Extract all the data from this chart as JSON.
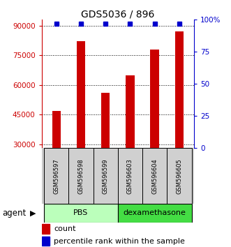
{
  "title": "GDS5036 / 896",
  "samples": [
    "GSM596597",
    "GSM596598",
    "GSM596599",
    "GSM596603",
    "GSM596604",
    "GSM596605"
  ],
  "counts": [
    47000,
    82000,
    56000,
    65000,
    78000,
    87000
  ],
  "percentiles": [
    97,
    97,
    97,
    97,
    97,
    97
  ],
  "bar_color": "#cc0000",
  "dot_color": "#0000cc",
  "groups": [
    {
      "label": "PBS",
      "color": "#bbffbb",
      "start": 0,
      "end": 3
    },
    {
      "label": "dexamethasone",
      "color": "#44dd44",
      "start": 3,
      "end": 6
    }
  ],
  "group_label": "agent",
  "ylim_left": [
    28000,
    93000
  ],
  "ylim_right": [
    0,
    100
  ],
  "yticks_left": [
    30000,
    45000,
    60000,
    75000,
    90000
  ],
  "yticks_right": [
    0,
    25,
    50,
    75,
    100
  ],
  "ytick_labels_left": [
    "30000",
    "45000",
    "60000",
    "75000",
    "90000"
  ],
  "ytick_labels_right": [
    "0",
    "25",
    "50",
    "75",
    "100%"
  ],
  "left_axis_color": "#cc0000",
  "right_axis_color": "#0000cc",
  "background_color": "#ffffff",
  "legend_count_label": "count",
  "legend_percentile_label": "percentile rank within the sample",
  "bar_width": 0.35,
  "figsize": [
    3.31,
    3.54
  ],
  "dpi": 100
}
